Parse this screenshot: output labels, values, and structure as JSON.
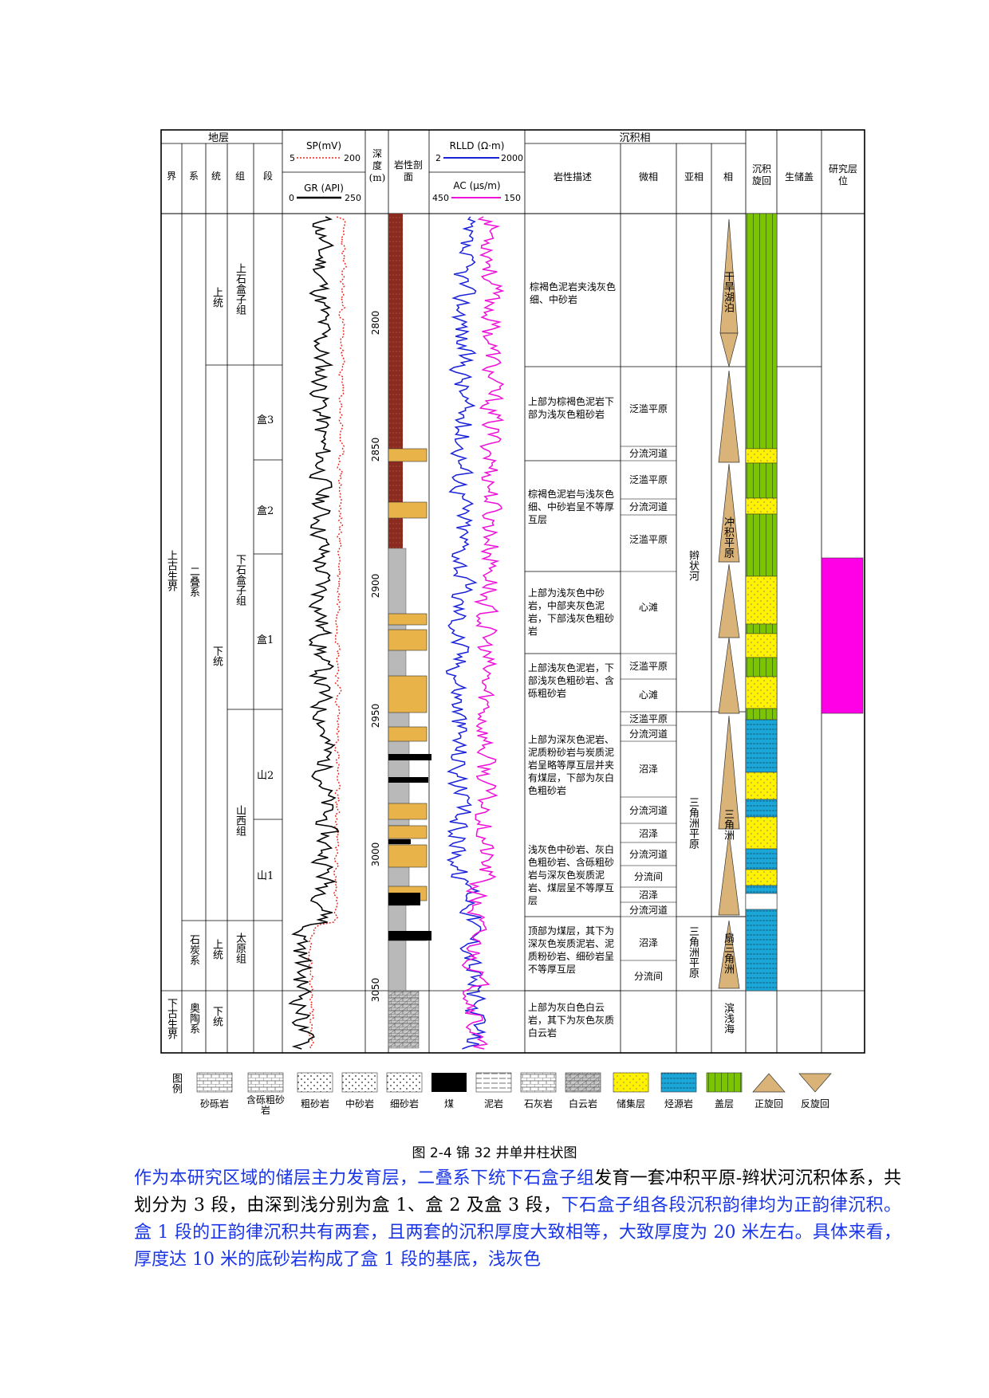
{
  "headers": {
    "stratum": "地层",
    "jie": "界",
    "xi": "系",
    "tong": "统",
    "zu": "组",
    "duan": "段",
    "sp": "SP(mV)",
    "sp_min": "5",
    "sp_max": "200",
    "gr": "GR (API)",
    "gr_min": "0",
    "gr_max": "250",
    "depth": "深度(m)",
    "lith": "岩性剖面",
    "rlld": "RLLD (Ω·m)",
    "rlld_min": "2",
    "rlld_max": "2000",
    "ac": "AC (μs/m)",
    "ac_min": "450",
    "ac_max": "150",
    "sedfacies": "沉积相",
    "desc": "岩性描述",
    "micro": "微相",
    "subfacies": "亚相",
    "facies": "相",
    "cycle": "沉积旋回",
    "srcres": "生储盖",
    "target": "研究层位"
  },
  "depth_ticks": [
    "2800",
    "2850",
    "2900",
    "2950",
    "3000",
    "3050"
  ],
  "jie": [
    "上古生界",
    "下古生界"
  ],
  "xi": [
    "二叠系",
    "石炭系",
    "奥陶系"
  ],
  "tong": [
    "上统",
    "下统",
    "上统",
    "下统"
  ],
  "zu": [
    "上石盒子组",
    "下石盒子组",
    "山西组",
    "太原组"
  ],
  "duan": [
    "盒3",
    "盒2",
    "盒1",
    "山2",
    "山1"
  ],
  "desc": [
    "棕褐色泥岩夹浅灰色细、中砂岩",
    "上部为棕褐色泥岩下部为浅灰色粗砂岩",
    "棕褐色泥岩与浅灰色细、中砂岩呈不等厚互层",
    "上部为浅灰色中砂岩，中部夹灰色泥岩，下部浅灰色粗砂岩",
    "上部浅灰色泥岩，下部浅灰色粗砂岩、含砾粗砂岩",
    "上部为深灰色泥岩、泥质粉砂岩与炭质泥岩呈略等厚互层并夹有煤层，下部为灰白色粗砂岩",
    "浅灰色中砂岩、灰白色粗砂岩、含砾粗砂岩与深灰色炭质泥岩、煤层呈不等厚互层",
    "顶部为煤层，其下为深灰色炭质泥岩、泥质粉砂岩、细砂岩呈不等厚互层",
    "上部为灰白色白云岩，其下为灰色灰质白云岩"
  ],
  "micro": [
    "泛滥平原",
    "分流河道",
    "泛滥平原",
    "分流河道",
    "泛滥平原",
    "心滩",
    "泛滥平原",
    "心滩",
    "泛滥平原",
    "分流河道",
    "沼泽",
    "分流河道",
    "沼泽",
    "分流河道",
    "分流间",
    "沼泽",
    "分流河道",
    "沼泽",
    "分流间"
  ],
  "subfacies": [
    "辫状河",
    "三角洲平原",
    "三角洲平原"
  ],
  "facies": [
    "干旱湖泊",
    "冲积平原",
    "三角洲",
    "扇三角洲",
    "滨浅海"
  ],
  "legend": {
    "title": "图例",
    "items": [
      "砂砾岩",
      "含砾粗砂岩",
      "粗砂岩",
      "中砂岩",
      "细砂岩",
      "煤",
      "泥岩",
      "石灰岩",
      "白云岩",
      "储集层",
      "烃源岩",
      "盖层",
      "正旋回",
      "反旋回"
    ]
  },
  "colors": {
    "mudstone": "#8b2a1e",
    "sandstone": "#e8b44a",
    "gray": "#b9b9b9",
    "coal": "#000000",
    "reservoir": "#fff200",
    "source": "#1aa7d8",
    "cap": "#7cc400",
    "target": "#ff00e6",
    "rlld": "#1a22d8",
    "ac": "#ee10d8",
    "sp": "#e8241c",
    "triangle": "#d9b377"
  },
  "caption": "图 2-4 锦 32 井单井柱状图",
  "paragraph": {
    "s1": "作为本研究区域的储层主力发育层，二叠系下统下石盒子组",
    "s2": "发育一套冲积平原-辫状河沉积体系，共划分为 3 段，由深到浅分别为盒 1、盒 2 及盒 3 段，",
    "s3": "下石盒子组各段沉积韵律均为正韵律沉积。盒 1 段的正韵律沉积共有两套，且两套的沉积厚度大致相等，大致厚度为 20 米左右。具体来看，厚度达 10 米的底砂岩构成了盒 1 段的基底，浅灰色"
  }
}
